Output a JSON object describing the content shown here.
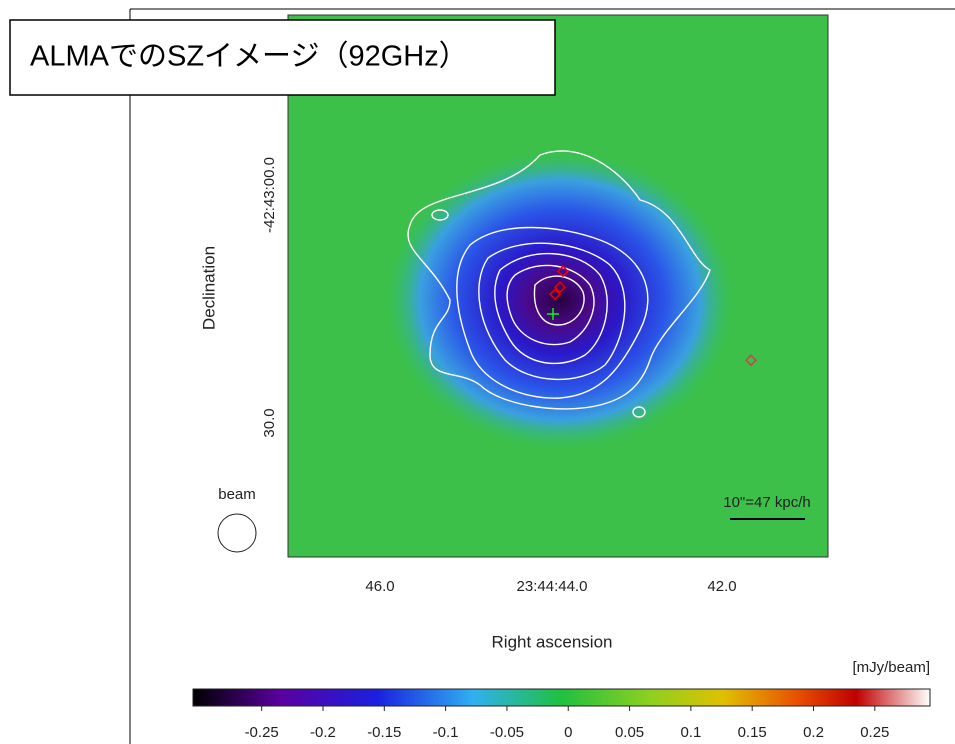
{
  "title": "ALMAでのSZイメージ（92GHz）",
  "image": {
    "x_label": "Right ascension",
    "y_label": "Declination",
    "x_tick_labels": [
      "46.0",
      "23:44:44.0",
      "42.0"
    ],
    "y_tick_labels": [
      "-42:43:00.0",
      "30.0"
    ],
    "beam_label": "beam",
    "scale_label": "10\"=47 kpc/h"
  },
  "colorbar": {
    "unit": "[mJy/beam]",
    "lim": [
      -0.306,
      0.295
    ],
    "ticks": [
      -0.25,
      -0.2,
      -0.15,
      -0.1,
      -0.05,
      0,
      0.05,
      0.1,
      0.15,
      0.2,
      0.25
    ]
  }
}
